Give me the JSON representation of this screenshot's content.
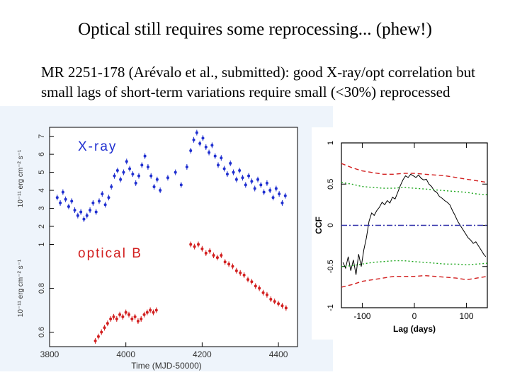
{
  "slide": {
    "title": "Optical still requires some reprocessing... (phew!)",
    "body": "MR 2251-178 (Arévalo et al., submitted): good X-ray/opt correlation but small lags of short-term variations require small (<30%) reprocessed variability component"
  },
  "chart_data": [
    {
      "type": "scatter",
      "panel": "light curves",
      "xlabel": "Time (MJD-50000)",
      "xticks": [
        "3800",
        "4000",
        "4200",
        "4400"
      ],
      "xlim": [
        3800,
        4450
      ],
      "panels": [
        {
          "name": "X-ray",
          "label": "X-ray",
          "ylabel": "10⁻¹¹ erg cm⁻² s⁻¹",
          "yticks": [
            "2",
            "3",
            "4",
            "5",
            "6",
            "7"
          ],
          "ylim": [
            2,
            7.3
          ],
          "color": "#1f2fd0",
          "points": [
            [
              3820,
              3.6
            ],
            [
              3828,
              3.3
            ],
            [
              3835,
              3.9
            ],
            [
              3842,
              3.5
            ],
            [
              3850,
              3.1
            ],
            [
              3858,
              3.4
            ],
            [
              3866,
              2.9
            ],
            [
              3874,
              2.6
            ],
            [
              3882,
              2.8
            ],
            [
              3890,
              2.4
            ],
            [
              3898,
              2.6
            ],
            [
              3906,
              2.9
            ],
            [
              3914,
              3.3
            ],
            [
              3922,
              2.8
            ],
            [
              3930,
              3.4
            ],
            [
              3938,
              3.8
            ],
            [
              3946,
              3.2
            ],
            [
              3955,
              3.6
            ],
            [
              3962,
              4.2
            ],
            [
              3970,
              4.8
            ],
            [
              3978,
              5.1
            ],
            [
              3986,
              4.6
            ],
            [
              3994,
              5.0
            ],
            [
              4002,
              5.6
            ],
            [
              4010,
              5.2
            ],
            [
              4018,
              4.9
            ],
            [
              4026,
              4.4
            ],
            [
              4034,
              4.8
            ],
            [
              4042,
              5.4
            ],
            [
              4050,
              5.9
            ],
            [
              4058,
              5.3
            ],
            [
              4066,
              4.8
            ],
            [
              4074,
              4.2
            ],
            [
              4082,
              4.6
            ],
            [
              4090,
              4.0
            ],
            [
              4110,
              4.7
            ],
            [
              4130,
              5.0
            ],
            [
              4145,
              4.3
            ],
            [
              4160,
              5.3
            ],
            [
              4170,
              6.2
            ],
            [
              4178,
              6.8
            ],
            [
              4186,
              7.2
            ],
            [
              4194,
              6.6
            ],
            [
              4202,
              6.9
            ],
            [
              4210,
              6.4
            ],
            [
              4218,
              6.1
            ],
            [
              4226,
              6.5
            ],
            [
              4234,
              5.9
            ],
            [
              4242,
              5.4
            ],
            [
              4250,
              5.8
            ],
            [
              4258,
              5.2
            ],
            [
              4266,
              4.9
            ],
            [
              4274,
              5.5
            ],
            [
              4282,
              5.0
            ],
            [
              4290,
              4.6
            ],
            [
              4298,
              5.1
            ],
            [
              4306,
              4.7
            ],
            [
              4314,
              4.3
            ],
            [
              4322,
              4.8
            ],
            [
              4330,
              4.5
            ],
            [
              4338,
              4.1
            ],
            [
              4346,
              4.6
            ],
            [
              4354,
              4.3
            ],
            [
              4362,
              3.9
            ],
            [
              4370,
              4.4
            ],
            [
              4378,
              4.0
            ],
            [
              4386,
              3.6
            ],
            [
              4394,
              4.1
            ],
            [
              4402,
              3.8
            ],
            [
              4410,
              3.3
            ],
            [
              4418,
              3.7
            ]
          ]
        },
        {
          "name": "optical B",
          "label": "optical B",
          "ylabel": "10⁻¹¹ erg cm⁻² s⁻¹",
          "yticks": [
            "0.6",
            "0.8",
            "1"
          ],
          "ylim": [
            0.55,
            1.05
          ],
          "color": "#d21f1f",
          "points": [
            [
              3920,
              0.56
            ],
            [
              3928,
              0.58
            ],
            [
              3936,
              0.6
            ],
            [
              3944,
              0.62
            ],
            [
              3952,
              0.64
            ],
            [
              3960,
              0.66
            ],
            [
              3968,
              0.67
            ],
            [
              3976,
              0.66
            ],
            [
              3984,
              0.68
            ],
            [
              3992,
              0.67
            ],
            [
              4000,
              0.69
            ],
            [
              4008,
              0.68
            ],
            [
              4016,
              0.66
            ],
            [
              4024,
              0.67
            ],
            [
              4032,
              0.65
            ],
            [
              4040,
              0.66
            ],
            [
              4048,
              0.68
            ],
            [
              4056,
              0.69
            ],
            [
              4064,
              0.7
            ],
            [
              4072,
              0.69
            ],
            [
              4080,
              0.7
            ],
            [
              4170,
              1.0
            ],
            [
              4180,
              0.99
            ],
            [
              4190,
              1.0
            ],
            [
              4200,
              0.98
            ],
            [
              4210,
              0.96
            ],
            [
              4220,
              0.97
            ],
            [
              4230,
              0.95
            ],
            [
              4240,
              0.94
            ],
            [
              4250,
              0.95
            ],
            [
              4260,
              0.92
            ],
            [
              4270,
              0.91
            ],
            [
              4280,
              0.9
            ],
            [
              4290,
              0.88
            ],
            [
              4300,
              0.87
            ],
            [
              4310,
              0.86
            ],
            [
              4320,
              0.84
            ],
            [
              4330,
              0.83
            ],
            [
              4340,
              0.81
            ],
            [
              4350,
              0.8
            ],
            [
              4360,
              0.78
            ],
            [
              4370,
              0.77
            ],
            [
              4380,
              0.75
            ],
            [
              4390,
              0.74
            ],
            [
              4400,
              0.73
            ],
            [
              4410,
              0.72
            ],
            [
              4420,
              0.71
            ]
          ]
        }
      ]
    },
    {
      "type": "line",
      "panel": "cross-correlation",
      "xlabel": "Lag (days)",
      "ylabel": "CCF",
      "xlim": [
        -140,
        140
      ],
      "ylim": [
        -1,
        1
      ],
      "xticks": [
        "-100",
        "0",
        "100"
      ],
      "yticks": [
        "-1",
        "-0.5",
        "0",
        "0.5",
        "1"
      ],
      "series": [
        {
          "color": "#000000",
          "style": "solid",
          "x": [
            -137,
            -132,
            -127,
            -122,
            -117,
            -112,
            -107,
            -102,
            -97,
            -92,
            -87,
            -82,
            -77,
            -72,
            -67,
            -62,
            -57,
            -52,
            -47,
            -42,
            -37,
            -32,
            -27,
            -22,
            -17,
            -12,
            -7,
            -2,
            3,
            8,
            13,
            18,
            23,
            28,
            33,
            38,
            43,
            48,
            53,
            58,
            63,
            68,
            73,
            78,
            83,
            88,
            93,
            98,
            103,
            108,
            113,
            118,
            123,
            128,
            133,
            137
          ],
          "y": [
            -0.45,
            -0.52,
            -0.38,
            -0.55,
            -0.42,
            -0.6,
            -0.35,
            -0.5,
            -0.3,
            -0.15,
            0.05,
            0.15,
            0.12,
            0.18,
            0.22,
            0.28,
            0.25,
            0.3,
            0.27,
            0.34,
            0.32,
            0.4,
            0.48,
            0.55,
            0.6,
            0.58,
            0.62,
            0.6,
            0.58,
            0.61,
            0.57,
            0.55,
            0.56,
            0.5,
            0.47,
            0.42,
            0.4,
            0.35,
            0.33,
            0.3,
            0.28,
            0.25,
            0.18,
            0.12,
            0.05,
            0.0,
            -0.05,
            -0.1,
            -0.15,
            -0.18,
            -0.22,
            -0.2,
            -0.25,
            -0.3,
            -0.35,
            -0.38
          ]
        },
        {
          "color": "#d21f1f",
          "style": "dashed",
          "x": [
            -140,
            -120,
            -100,
            -80,
            -60,
            -40,
            -20,
            0,
            20,
            40,
            60,
            80,
            100,
            120,
            140
          ],
          "y": [
            0.75,
            0.7,
            0.66,
            0.64,
            0.62,
            0.62,
            0.63,
            0.63,
            0.62,
            0.61,
            0.6,
            0.58,
            0.56,
            0.54,
            0.52
          ]
        },
        {
          "color": "#d21f1f",
          "style": "dashed",
          "x": [
            -140,
            -120,
            -100,
            -80,
            -60,
            -40,
            -20,
            0,
            20,
            40,
            60,
            80,
            100,
            120,
            140
          ],
          "y": [
            -0.75,
            -0.72,
            -0.68,
            -0.66,
            -0.64,
            -0.62,
            -0.62,
            -0.62,
            -0.61,
            -0.62,
            -0.63,
            -0.64,
            -0.66,
            -0.64,
            -0.62
          ]
        },
        {
          "color": "#1aa51a",
          "style": "dotted",
          "x": [
            -140,
            -120,
            -100,
            -80,
            -60,
            -40,
            -20,
            0,
            20,
            40,
            60,
            80,
            100,
            120,
            140
          ],
          "y": [
            0.52,
            0.5,
            0.47,
            0.46,
            0.45,
            0.45,
            0.46,
            0.45,
            0.44,
            0.43,
            0.42,
            0.41,
            0.4,
            0.38,
            0.37
          ]
        },
        {
          "color": "#1aa51a",
          "style": "dotted",
          "x": [
            -140,
            -120,
            -100,
            -80,
            -60,
            -40,
            -20,
            0,
            20,
            40,
            60,
            80,
            100,
            120,
            140
          ],
          "y": [
            -0.5,
            -0.49,
            -0.47,
            -0.45,
            -0.44,
            -0.43,
            -0.43,
            -0.44,
            -0.45,
            -0.46,
            -0.47,
            -0.47,
            -0.48,
            -0.47,
            -0.46
          ]
        },
        {
          "color": "#2a2aa8",
          "style": "dashdot",
          "x": [
            -140,
            140
          ],
          "y": [
            0,
            0
          ]
        }
      ]
    }
  ]
}
